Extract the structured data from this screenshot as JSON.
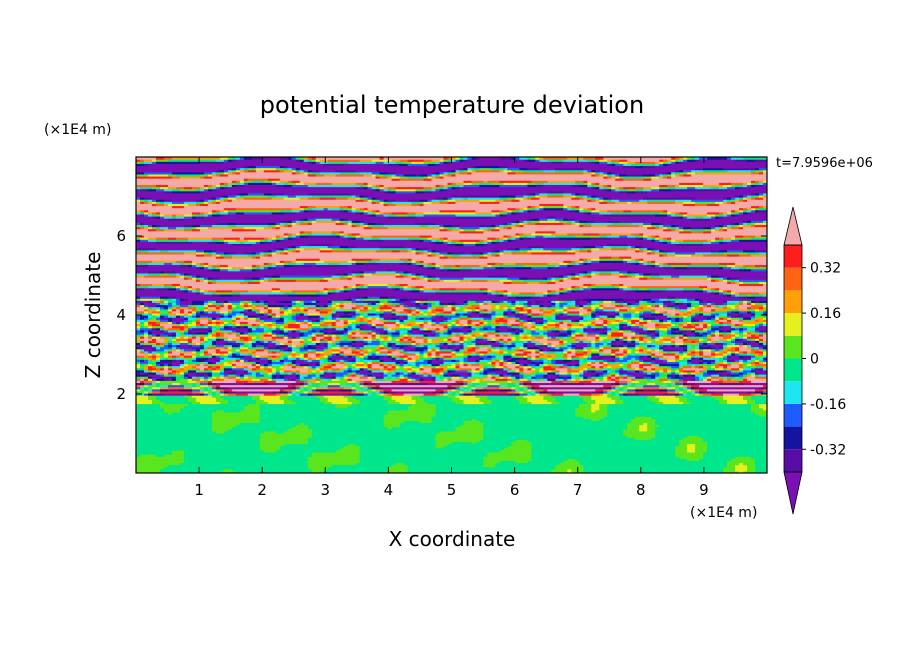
{
  "chart_data": {
    "type": "heatmap",
    "title": "potential temperature deviation",
    "xlabel": "X coordinate",
    "ylabel": "Z coordinate",
    "x_unit": "(×1E4 m)",
    "y_unit": "(×1E4 m)",
    "time_label": "t=7.9596e+06",
    "xlim": [
      0,
      10
    ],
    "ylim": [
      0,
      8
    ],
    "x_ticks": [
      "1",
      "2",
      "3",
      "4",
      "5",
      "6",
      "7",
      "8",
      "9"
    ],
    "y_ticks": [
      "2",
      "4",
      "6"
    ],
    "colorbar": {
      "levels": [
        -0.4,
        -0.32,
        -0.24,
        -0.16,
        -0.08,
        0,
        0.08,
        0.16,
        0.24,
        0.32,
        0.4
      ],
      "colors": [
        "#5a0da6",
        "#1414a0",
        "#1f5cff",
        "#1ee6f0",
        "#00e68c",
        "#5ae61e",
        "#e6f01e",
        "#ffa00a",
        "#ff6414",
        "#ff1e1e"
      ],
      "under_color": "#7a10b4",
      "over_color": "#f5aaaa",
      "tick_labels": [
        "0.32",
        "0.16",
        "0",
        "-0.16",
        "-0.32"
      ],
      "tick_values": [
        0.32,
        0.16,
        0,
        -0.16,
        -0.32
      ]
    },
    "bands": [
      {
        "z0": 0.0,
        "z1": 1.75,
        "kind": "green"
      },
      {
        "z0": 1.75,
        "z1": 2.0,
        "kind": "mixed"
      },
      {
        "z0": 2.0,
        "z1": 2.35,
        "kind": "stripes"
      },
      {
        "z0": 2.35,
        "z1": 4.4,
        "kind": "turbulent"
      },
      {
        "z0": 4.4,
        "z1": 8.0,
        "kind": "layers"
      }
    ]
  }
}
